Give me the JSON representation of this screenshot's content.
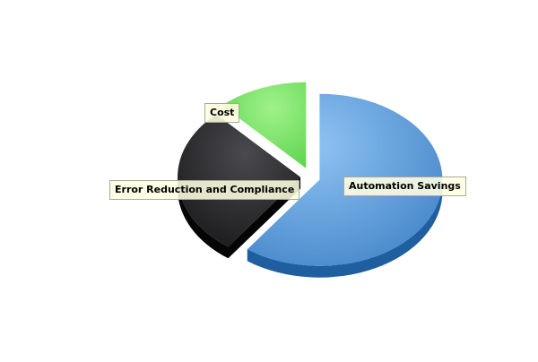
{
  "chart_data": {
    "type": "pie",
    "title": "",
    "three_d": true,
    "exploded": true,
    "slices": [
      {
        "label": "Automation Savings",
        "value": 60,
        "color": "#4a8cd0"
      },
      {
        "label": "Error Reduction and Compliance",
        "value": 28,
        "color": "#1c1c1e"
      },
      {
        "label": "Cost",
        "value": 12,
        "color": "#62d650"
      }
    ],
    "legend": "none",
    "label_style": "callout boxes"
  }
}
